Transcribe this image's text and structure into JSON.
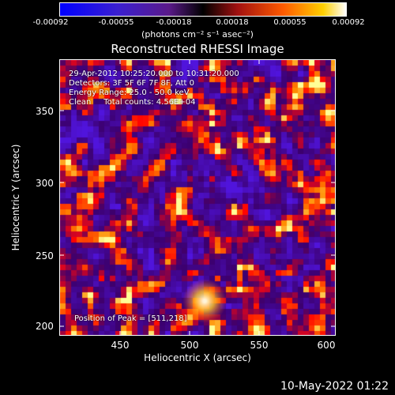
{
  "colorbar": {
    "ticks": [
      "-0.00092",
      "-0.00055",
      "-0.00018",
      "0.00018",
      "0.00055",
      "0.00092"
    ],
    "units": "(photons cm⁻² s⁻¹ asec⁻²)"
  },
  "title": "Reconstructed RHESSI Image",
  "annotations": {
    "line1": "29-Apr-2012 10:25:20.000 to 10:31:20.000",
    "line2": "Detectors: 3F 5F 6F 7F 8F, Att 0",
    "line3": "Energy Range: 25.0 - 50.0 keV",
    "line4": "Clean     Total counts: 4.56E+04",
    "peak": "Position of Peak = [511,218]"
  },
  "axes": {
    "xlabel": "Heliocentric X (arcsec)",
    "ylabel": "Heliocentric Y (arcsec)",
    "xticks": [
      "450",
      "500",
      "550",
      "600"
    ],
    "yticks": [
      "350",
      "300",
      "250",
      "200"
    ]
  },
  "timestamp": "10-May-2022 01:22",
  "colors": {
    "background": "#000000",
    "text": "#ffffff"
  }
}
